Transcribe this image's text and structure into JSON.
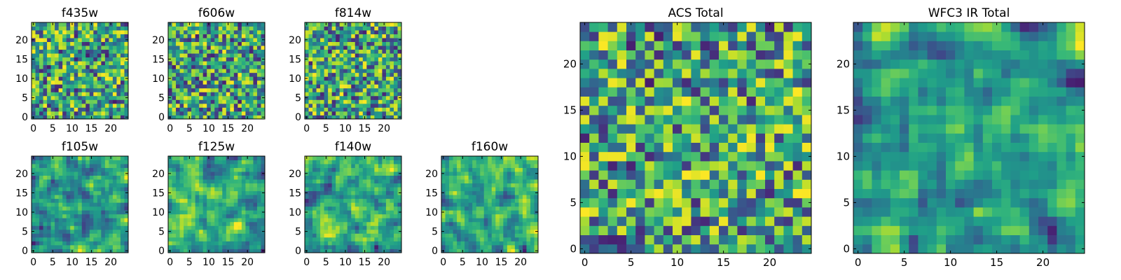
{
  "chart_data": [
    {
      "type": "heatmap",
      "title": "f435w",
      "xticks": [
        0,
        5,
        10,
        15,
        20
      ],
      "yticks": [
        0,
        5,
        10,
        15,
        20
      ],
      "grid_size": [
        25,
        25
      ],
      "xlim": [
        -0.5,
        24.5
      ],
      "ylim": [
        -0.5,
        24.5
      ],
      "colormap": "viridis",
      "smoothness": 0,
      "seed": 11
    },
    {
      "type": "heatmap",
      "title": "f606w",
      "xticks": [
        0,
        5,
        10,
        15,
        20
      ],
      "yticks": [
        0,
        5,
        10,
        15,
        20
      ],
      "grid_size": [
        25,
        25
      ],
      "xlim": [
        -0.5,
        24.5
      ],
      "ylim": [
        -0.5,
        24.5
      ],
      "colormap": "viridis",
      "smoothness": 0,
      "seed": 23
    },
    {
      "type": "heatmap",
      "title": "f814w",
      "xticks": [
        0,
        5,
        10,
        15,
        20
      ],
      "yticks": [
        0,
        5,
        10,
        15,
        20
      ],
      "grid_size": [
        25,
        25
      ],
      "xlim": [
        -0.5,
        24.5
      ],
      "ylim": [
        -0.5,
        24.5
      ],
      "colormap": "viridis",
      "smoothness": 0,
      "seed": 37
    },
    {
      "type": "heatmap",
      "title": "f105w",
      "xticks": [
        0,
        5,
        10,
        15,
        20
      ],
      "yticks": [
        0,
        5,
        10,
        15,
        20
      ],
      "grid_size": [
        25,
        25
      ],
      "xlim": [
        -0.5,
        24.5
      ],
      "ylim": [
        -0.5,
        24.5
      ],
      "colormap": "viridis",
      "smoothness": 1,
      "seed": 41
    },
    {
      "type": "heatmap",
      "title": "f125w",
      "xticks": [
        0,
        5,
        10,
        15,
        20
      ],
      "yticks": [
        0,
        5,
        10,
        15,
        20
      ],
      "grid_size": [
        25,
        25
      ],
      "xlim": [
        -0.5,
        24.5
      ],
      "ylim": [
        -0.5,
        24.5
      ],
      "colormap": "viridis",
      "smoothness": 1,
      "seed": 53
    },
    {
      "type": "heatmap",
      "title": "f140w",
      "xticks": [
        0,
        5,
        10,
        15,
        20
      ],
      "yticks": [
        0,
        5,
        10,
        15,
        20
      ],
      "grid_size": [
        25,
        25
      ],
      "xlim": [
        -0.5,
        24.5
      ],
      "ylim": [
        -0.5,
        24.5
      ],
      "colormap": "viridis",
      "smoothness": 1,
      "seed": 67
    },
    {
      "type": "heatmap",
      "title": "f160w",
      "xticks": [
        0,
        5,
        10,
        15,
        20
      ],
      "yticks": [
        0,
        5,
        10,
        15,
        20
      ],
      "grid_size": [
        25,
        25
      ],
      "xlim": [
        -0.5,
        24.5
      ],
      "ylim": [
        -0.5,
        24.5
      ],
      "colormap": "viridis",
      "smoothness": 1,
      "seed": 79
    },
    {
      "type": "heatmap",
      "title": "ACS Total",
      "xticks": [
        0,
        5,
        10,
        15,
        20
      ],
      "yticks": [
        0,
        5,
        10,
        15,
        20
      ],
      "grid_size": [
        25,
        25
      ],
      "xlim": [
        -0.5,
        24.5
      ],
      "ylim": [
        -0.5,
        24.5
      ],
      "colormap": "viridis",
      "smoothness": 0,
      "seed": 97
    },
    {
      "type": "heatmap",
      "title": "WFC3 IR Total",
      "xticks": [
        0,
        5,
        10,
        15,
        20
      ],
      "yticks": [
        0,
        5,
        10,
        15,
        20
      ],
      "grid_size": [
        25,
        25
      ],
      "xlim": [
        -0.5,
        24.5
      ],
      "ylim": [
        -0.5,
        24.5
      ],
      "colormap": "viridis",
      "smoothness": 1,
      "seed": 113
    }
  ]
}
